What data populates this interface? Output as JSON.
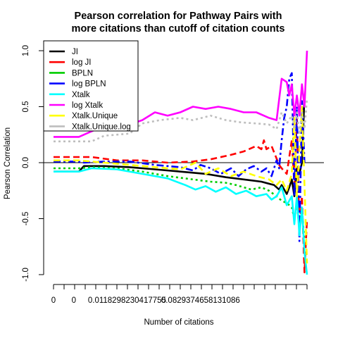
{
  "chart_data": {
    "type": "line",
    "title": [
      "Pearson correlation for Pathway Pairs with",
      "more citations than cutoff of citation counts"
    ],
    "xlabel": "Number of citations",
    "ylabel": "Pearson Correlation",
    "ylim": [
      -1.0,
      1.0
    ],
    "yticks": [
      "-1.0",
      "-0.5",
      "0.0",
      "0.5",
      "1.0"
    ],
    "xlim": [
      0,
      100
    ],
    "xtick_labels": [
      {
        "x": 0,
        "label": "0"
      },
      {
        "x": 8,
        "label": "0"
      },
      {
        "x": 29,
        "label": "0.0118298230417755"
      },
      {
        "x": 58,
        "label": "0.0829374658131086"
      }
    ],
    "reference_line": 0,
    "grid": false,
    "legend_position": "top-left",
    "series": [
      {
        "name": "JI",
        "color": "#000000",
        "dash": "solid",
        "points": [
          [
            0,
            -0.08
          ],
          [
            10,
            -0.08
          ],
          [
            12,
            -0.03
          ],
          [
            20,
            -0.03
          ],
          [
            30,
            -0.04
          ],
          [
            40,
            -0.06
          ],
          [
            50,
            -0.08
          ],
          [
            60,
            -0.1
          ],
          [
            68,
            -0.13
          ],
          [
            75,
            -0.15
          ],
          [
            82,
            -0.17
          ],
          [
            87,
            -0.2
          ],
          [
            89,
            -0.24
          ],
          [
            90,
            -0.2
          ],
          [
            92,
            -0.28
          ],
          [
            93,
            -0.22
          ],
          [
            94,
            -0.15
          ],
          [
            95,
            -0.3
          ],
          [
            96,
            -0.05
          ],
          [
            97,
            -0.1
          ],
          [
            98,
            0.0
          ],
          [
            99,
            0.6
          ]
        ]
      },
      {
        "name": "log JI",
        "color": "#ff0000",
        "dash": "dash",
        "points": [
          [
            0,
            0.05
          ],
          [
            15,
            0.05
          ],
          [
            25,
            0.02
          ],
          [
            35,
            0.02
          ],
          [
            45,
            0.0
          ],
          [
            55,
            0.01
          ],
          [
            62,
            0.03
          ],
          [
            70,
            0.07
          ],
          [
            75,
            0.1
          ],
          [
            80,
            0.15
          ],
          [
            82,
            0.12
          ],
          [
            83,
            0.2
          ],
          [
            84,
            0.12
          ],
          [
            86,
            0.15
          ],
          [
            89,
            -0.02
          ],
          [
            90,
            -0.05
          ],
          [
            92,
            -0.1
          ],
          [
            94,
            0.2
          ],
          [
            95,
            -0.2
          ],
          [
            96,
            0.4
          ],
          [
            97,
            -0.6
          ],
          [
            98,
            -0.3
          ],
          [
            99,
            -0.98
          ],
          [
            100,
            -0.5
          ]
        ]
      },
      {
        "name": "BPLN",
        "color": "#00cd00",
        "dash": "dot",
        "points": [
          [
            0,
            -0.05
          ],
          [
            10,
            -0.05
          ],
          [
            15,
            -0.04
          ],
          [
            25,
            -0.05
          ],
          [
            35,
            -0.08
          ],
          [
            45,
            -0.12
          ],
          [
            55,
            -0.15
          ],
          [
            62,
            -0.17
          ],
          [
            68,
            -0.18
          ],
          [
            72,
            -0.2
          ],
          [
            78,
            -0.24
          ],
          [
            82,
            -0.22
          ],
          [
            85,
            -0.25
          ],
          [
            88,
            -0.3
          ],
          [
            90,
            -0.34
          ],
          [
            92,
            -0.36
          ],
          [
            94,
            -0.4
          ],
          [
            95,
            -0.5
          ],
          [
            96,
            -0.35
          ],
          [
            97,
            -0.6
          ],
          [
            98,
            -0.42
          ],
          [
            99,
            -0.7
          ]
        ]
      },
      {
        "name": "log BPLN",
        "color": "#0000ff",
        "dash": "dashdot",
        "points": [
          [
            0,
            0.01
          ],
          [
            10,
            0.01
          ],
          [
            12,
            0.0
          ],
          [
            20,
            0.01
          ],
          [
            30,
            0.01
          ],
          [
            40,
            -0.02
          ],
          [
            50,
            -0.04
          ],
          [
            55,
            -0.07
          ],
          [
            58,
            -0.02
          ],
          [
            62,
            -0.05
          ],
          [
            66,
            -0.1
          ],
          [
            70,
            -0.05
          ],
          [
            73,
            -0.12
          ],
          [
            76,
            -0.06
          ],
          [
            79,
            -0.03
          ],
          [
            82,
            -0.08
          ],
          [
            84,
            -0.05
          ],
          [
            86,
            -0.12
          ],
          [
            88,
            0.02
          ],
          [
            89,
            -0.05
          ],
          [
            90,
            0.2
          ],
          [
            91,
            0.4
          ],
          [
            92,
            0.5
          ],
          [
            93,
            0.75
          ],
          [
            94,
            0.8
          ],
          [
            95,
            -0.3
          ],
          [
            96,
            0.5
          ],
          [
            97,
            -0.7
          ],
          [
            98,
            0.55
          ],
          [
            99,
            0.0
          ]
        ]
      },
      {
        "name": "Xtalk",
        "color": "#00ffff",
        "dash": "solid",
        "points": [
          [
            0,
            -0.08
          ],
          [
            10,
            -0.08
          ],
          [
            15,
            -0.05
          ],
          [
            25,
            -0.06
          ],
          [
            35,
            -0.1
          ],
          [
            45,
            -0.14
          ],
          [
            52,
            -0.2
          ],
          [
            56,
            -0.24
          ],
          [
            60,
            -0.21
          ],
          [
            64,
            -0.26
          ],
          [
            68,
            -0.22
          ],
          [
            72,
            -0.28
          ],
          [
            76,
            -0.25
          ],
          [
            80,
            -0.3
          ],
          [
            84,
            -0.28
          ],
          [
            86,
            -0.33
          ],
          [
            88,
            -0.3
          ],
          [
            90,
            -0.22
          ],
          [
            92,
            -0.38
          ],
          [
            94,
            -0.3
          ],
          [
            95,
            -0.55
          ],
          [
            96,
            -0.3
          ],
          [
            97,
            -0.65
          ],
          [
            98,
            -0.4
          ],
          [
            99,
            -0.8
          ],
          [
            100,
            -1.0
          ]
        ]
      },
      {
        "name": "log Xtalk",
        "color": "#ff00ff",
        "dash": "solid",
        "points": [
          [
            0,
            0.23
          ],
          [
            10,
            0.23
          ],
          [
            15,
            0.28
          ],
          [
            20,
            0.33
          ],
          [
            25,
            0.33
          ],
          [
            30,
            0.34
          ],
          [
            35,
            0.38
          ],
          [
            40,
            0.45
          ],
          [
            45,
            0.42
          ],
          [
            50,
            0.45
          ],
          [
            55,
            0.5
          ],
          [
            60,
            0.48
          ],
          [
            65,
            0.5
          ],
          [
            70,
            0.48
          ],
          [
            75,
            0.45
          ],
          [
            80,
            0.45
          ],
          [
            85,
            0.4
          ],
          [
            88,
            0.38
          ],
          [
            90,
            0.75
          ],
          [
            92,
            0.72
          ],
          [
            93,
            0.6
          ],
          [
            94,
            0.7
          ],
          [
            95,
            0.42
          ],
          [
            96,
            0.6
          ],
          [
            97,
            0.42
          ],
          [
            98,
            0.7
          ],
          [
            99,
            0.5
          ],
          [
            100,
            1.0
          ]
        ]
      },
      {
        "name": "Xtalk.Unique",
        "color": "#ffff00",
        "dash": "dash",
        "points": [
          [
            0,
            0.02
          ],
          [
            10,
            0.02
          ],
          [
            20,
            0.0
          ],
          [
            30,
            -0.02
          ],
          [
            40,
            -0.04
          ],
          [
            50,
            -0.06
          ],
          [
            56,
            0.0
          ],
          [
            60,
            -0.1
          ],
          [
            65,
            -0.05
          ],
          [
            70,
            -0.12
          ],
          [
            75,
            -0.08
          ],
          [
            80,
            -0.12
          ],
          [
            85,
            -0.15
          ],
          [
            88,
            -0.2
          ],
          [
            90,
            -0.15
          ],
          [
            92,
            -0.25
          ],
          [
            94,
            -0.1
          ],
          [
            95,
            0.4
          ],
          [
            96,
            -0.3
          ],
          [
            97,
            0.1
          ],
          [
            98,
            0.5
          ],
          [
            99,
            -0.2
          ],
          [
            100,
            -0.9
          ]
        ]
      },
      {
        "name": "Xtalk.Unique.log",
        "color": "#bebebe",
        "dash": "dot",
        "points": [
          [
            0,
            0.19
          ],
          [
            15,
            0.19
          ],
          [
            20,
            0.24
          ],
          [
            30,
            0.26
          ],
          [
            35,
            0.35
          ],
          [
            42,
            0.38
          ],
          [
            50,
            0.4
          ],
          [
            55,
            0.38
          ],
          [
            62,
            0.42
          ],
          [
            68,
            0.38
          ],
          [
            74,
            0.36
          ],
          [
            80,
            0.35
          ],
          [
            85,
            0.34
          ],
          [
            88,
            0.3
          ],
          [
            90,
            0.45
          ],
          [
            92,
            0.35
          ],
          [
            94,
            0.42
          ],
          [
            95,
            0.3
          ],
          [
            96,
            0.45
          ],
          [
            97,
            0.25
          ],
          [
            98,
            0.45
          ],
          [
            99,
            0.3
          ],
          [
            100,
            0.58
          ]
        ]
      }
    ]
  }
}
